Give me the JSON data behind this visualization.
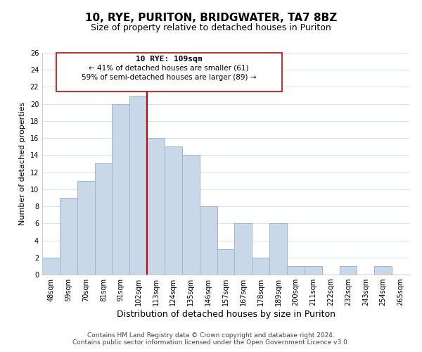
{
  "title": "10, RYE, PURITON, BRIDGWATER, TA7 8BZ",
  "subtitle": "Size of property relative to detached houses in Puriton",
  "xlabel": "Distribution of detached houses by size in Puriton",
  "ylabel": "Number of detached properties",
  "bar_labels": [
    "48sqm",
    "59sqm",
    "70sqm",
    "81sqm",
    "91sqm",
    "102sqm",
    "113sqm",
    "124sqm",
    "135sqm",
    "146sqm",
    "157sqm",
    "167sqm",
    "178sqm",
    "189sqm",
    "200sqm",
    "211sqm",
    "222sqm",
    "232sqm",
    "243sqm",
    "254sqm",
    "265sqm"
  ],
  "bar_values": [
    2,
    9,
    11,
    13,
    20,
    21,
    16,
    15,
    14,
    8,
    3,
    6,
    2,
    6,
    1,
    1,
    0,
    1,
    0,
    1,
    0
  ],
  "bar_color": "#c8d8e8",
  "bar_edge_color": "#a0b8cc",
  "grid_color": "#d8e4ec",
  "vline_x": 6.0,
  "vline_color": "#cc0000",
  "annotation_title": "10 RYE: 109sqm",
  "annotation_line1": "← 41% of detached houses are smaller (61)",
  "annotation_line2": "59% of semi-detached houses are larger (89) →",
  "annotation_box_color": "#ffffff",
  "annotation_box_edge": "#cc0000",
  "ylim": [
    0,
    26
  ],
  "yticks": [
    0,
    2,
    4,
    6,
    8,
    10,
    12,
    14,
    16,
    18,
    20,
    22,
    24,
    26
  ],
  "footer1": "Contains HM Land Registry data © Crown copyright and database right 2024.",
  "footer2": "Contains public sector information licensed under the Open Government Licence v3.0.",
  "background_color": "#ffffff",
  "title_fontsize": 11,
  "subtitle_fontsize": 9,
  "xlabel_fontsize": 9,
  "ylabel_fontsize": 8,
  "tick_fontsize": 7,
  "footer_fontsize": 6.5
}
